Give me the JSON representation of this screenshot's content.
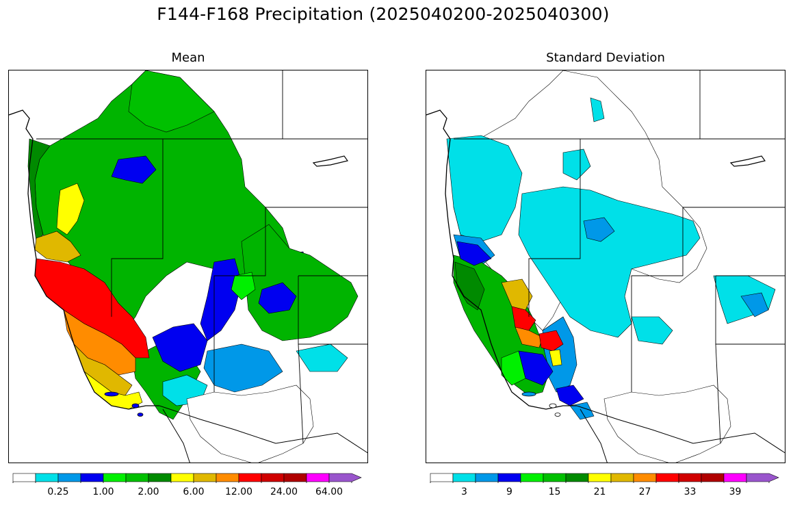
{
  "title": "F144-F168 Precipitation (2025040200-2025040300)",
  "panels": [
    {
      "id": "mean",
      "title": "Mean",
      "colorbar": {
        "colors": [
          "#ffffff",
          "#00e0e8",
          "#0098e8",
          "#0000f0",
          "#00f000",
          "#00c000",
          "#008a00",
          "#ffff00",
          "#e0b800",
          "#ff8c00",
          "#ff0000",
          "#d00000",
          "#b00000",
          "#ff00ff",
          "#9955cc"
        ],
        "extend": "max",
        "tick_labels": [
          "0.25",
          "1.00",
          "2.00",
          "6.00",
          "12.00",
          "24.00",
          "64.00"
        ]
      }
    },
    {
      "id": "stddev",
      "title": "Standard Deviation",
      "colorbar": {
        "colors": [
          "#ffffff",
          "#00e0e8",
          "#0098e8",
          "#0000f0",
          "#00f000",
          "#00c000",
          "#008a00",
          "#ffff00",
          "#e0b800",
          "#ff8c00",
          "#ff0000",
          "#d00000",
          "#b00000",
          "#ff00ff",
          "#9955cc"
        ],
        "extend": "max",
        "tick_labels": [
          "3",
          "9",
          "15",
          "21",
          "27",
          "33",
          "39"
        ]
      }
    }
  ]
}
